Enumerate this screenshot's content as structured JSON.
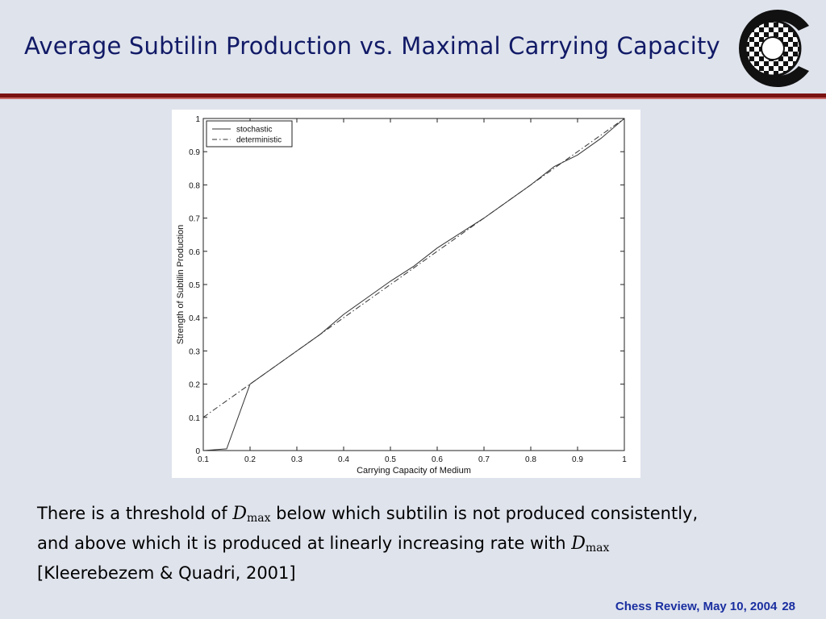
{
  "slide": {
    "title": "Average Subtilin Production vs. Maximal Carrying Capacity",
    "caption": {
      "line1_before": "There is a threshold of ",
      "d_symbol": "D",
      "d_subscript": "max",
      "line1_after": " below which subtilin is not produced consistently,",
      "line2": "and above which it is produced at linearly increasing rate with ",
      "line3": "[Kleerebezem & Quadri, 2001]"
    },
    "footer": {
      "text": "Chess Review, May 10, 2004",
      "page": "28"
    },
    "colors": {
      "title": "#111a66",
      "rule": "#7a1212",
      "footer": "#1a2fa0",
      "background": "#dfe3ec"
    }
  },
  "chart_data": {
    "type": "line",
    "title": "",
    "xlabel": "Carrying Capacity of Medium",
    "ylabel": "Strength of Subtilin Production",
    "xlim": [
      0.1,
      1
    ],
    "ylim": [
      0,
      1
    ],
    "xticks": [
      0.1,
      0.2,
      0.3,
      0.4,
      0.5,
      0.6,
      0.7,
      0.8,
      0.9,
      1
    ],
    "xtick_labels": [
      "0.1",
      "0.2",
      "0.3",
      "0.4",
      "0.5",
      "0.6",
      "0.7",
      "0.8",
      "0.9",
      "1"
    ],
    "yticks": [
      0,
      0.1,
      0.2,
      0.3,
      0.4,
      0.5,
      0.6,
      0.7,
      0.8,
      0.9,
      1
    ],
    "ytick_labels": [
      "0",
      "0.1",
      "0.2",
      "0.3",
      "0.4",
      "0.5",
      "0.6",
      "0.7",
      "0.8",
      "0.9",
      "1"
    ],
    "grid": false,
    "legend_position": "top-left",
    "series": [
      {
        "name": "stochastic",
        "style": "solid",
        "x": [
          0.1,
          0.15,
          0.2,
          0.25,
          0.3,
          0.35,
          0.4,
          0.45,
          0.5,
          0.55,
          0.6,
          0.65,
          0.7,
          0.75,
          0.8,
          0.85,
          0.9,
          0.95,
          1.0
        ],
        "y": [
          0.0,
          0.005,
          0.2,
          0.25,
          0.3,
          0.35,
          0.41,
          0.46,
          0.51,
          0.555,
          0.61,
          0.655,
          0.7,
          0.75,
          0.8,
          0.855,
          0.89,
          0.94,
          1.0
        ]
      },
      {
        "name": "deterministic",
        "style": "dashdot",
        "x": [
          0.1,
          1.0
        ],
        "y": [
          0.1,
          1.0
        ]
      }
    ]
  }
}
